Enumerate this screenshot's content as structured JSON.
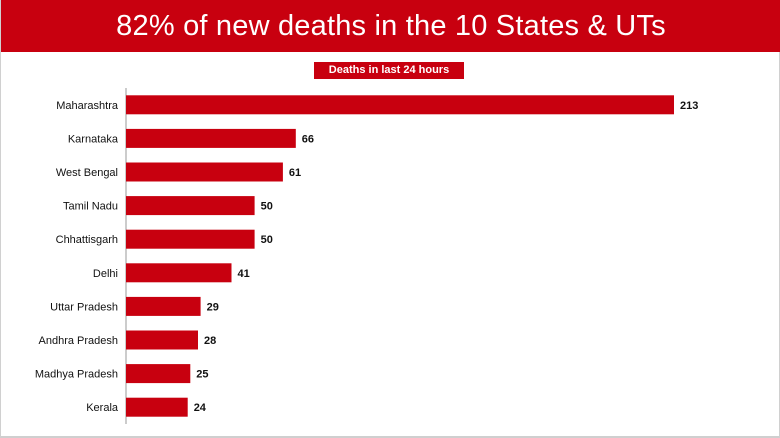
{
  "header": {
    "title": "82% of new deaths in the 10 States & UTs"
  },
  "chart_data": {
    "type": "bar",
    "orientation": "horizontal",
    "title": "Deaths in last 24 hours",
    "categories": [
      "Maharashtra",
      "Karnataka",
      "West Bengal",
      "Tamil Nadu",
      "Chhattisgarh",
      "Delhi",
      "Uttar Pradesh",
      "Andhra Pradesh",
      "Madhya Pradesh",
      "Kerala"
    ],
    "values": [
      213,
      66,
      61,
      50,
      50,
      41,
      29,
      28,
      25,
      24
    ],
    "xlim": [
      0,
      213
    ],
    "grid": false,
    "legend": "none",
    "data_labels": true
  },
  "colors": {
    "banner": "#c8000f",
    "bar": "#c8000f",
    "axis": "#999999",
    "text": "#111111"
  }
}
